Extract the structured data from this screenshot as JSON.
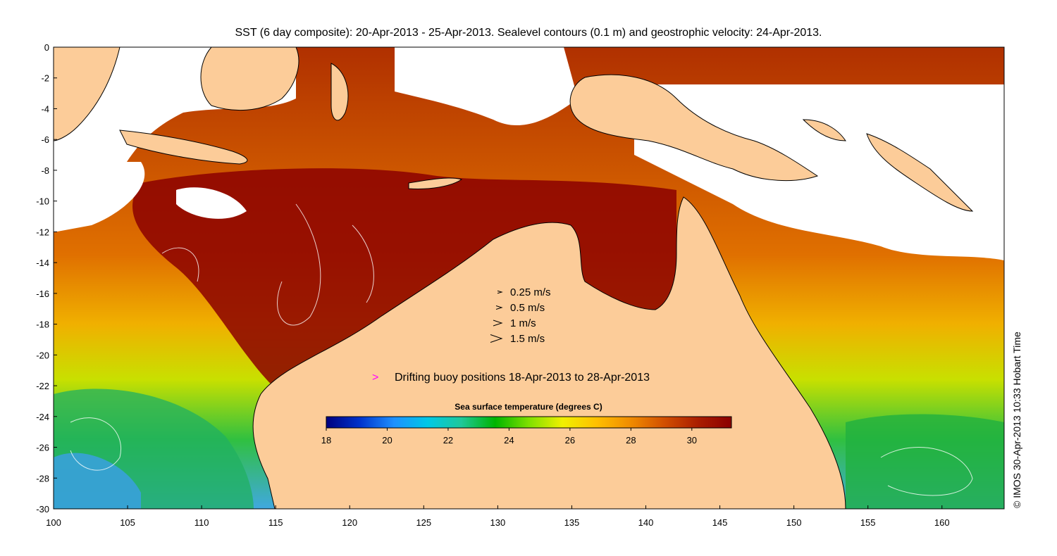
{
  "title": "SST (6 day composite): 20-Apr-2013 - 25-Apr-2013. Sealevel contours (0.1 m) and geostrophic velocity: 24-Apr-2013.",
  "credit": "© IMOS 30-Apr-2013 10:33 Hobart Time",
  "map": {
    "lon_range": [
      100,
      164.2
    ],
    "lat_range": [
      -30,
      0
    ],
    "x_ticks": [
      "100",
      "105",
      "110",
      "115",
      "120",
      "125",
      "130",
      "135",
      "140",
      "145",
      "150",
      "155",
      "160"
    ],
    "y_ticks": [
      "0",
      "-2",
      "-4",
      "-6",
      "-8",
      "-10",
      "-12",
      "-14",
      "-16",
      "-18",
      "-20",
      "-22",
      "-24",
      "-26",
      "-28",
      "-30"
    ],
    "land_color": "#fccc99",
    "cloud_color": "#ffffff"
  },
  "velocity_legend": [
    {
      "label": "0.25 m/s",
      "speed": 0.25
    },
    {
      "label": "0.5 m/s",
      "speed": 0.5
    },
    {
      "label": "1 m/s",
      "speed": 1
    },
    {
      "label": "1.5 m/s",
      "speed": 1.5
    }
  ],
  "buoy_legend": {
    "symbol": ">",
    "label": "Drifting buoy positions 18-Apr-2013 to 28-Apr-2013",
    "color": "#ff00ff"
  },
  "colorbar": {
    "title": "Sea surface temperature (degrees C)",
    "min": 18,
    "max": 31.3,
    "ticks": [
      "18",
      "20",
      "22",
      "24",
      "26",
      "28",
      "30"
    ],
    "stops": [
      "#00007f",
      "#0033cc",
      "#1e90ff",
      "#00c8e6",
      "#1ec89a",
      "#00b400",
      "#7fe000",
      "#f0f000",
      "#ffc000",
      "#f08c00",
      "#d25000",
      "#aa1e00",
      "#8b0000"
    ]
  }
}
